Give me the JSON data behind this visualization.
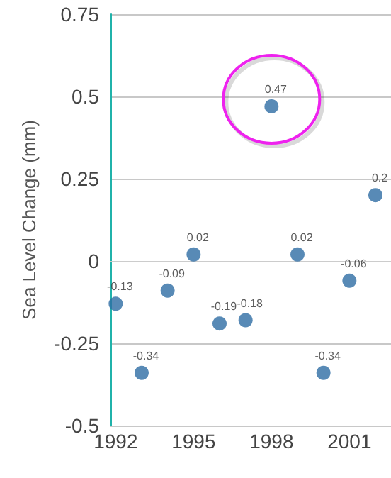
{
  "chart_data": {
    "type": "scatter",
    "ylabel": "Sea Level Change (mm)",
    "x": [
      1992,
      1993,
      1994,
      1995,
      1996,
      1997,
      1998,
      1999,
      2000,
      2001,
      2002
    ],
    "values": [
      -0.13,
      -0.34,
      -0.09,
      0.02,
      -0.19,
      -0.18,
      0.47,
      0.02,
      -0.34,
      -0.06,
      0.2
    ],
    "color": "#2e6da4",
    "xlim": [
      1991.8,
      2002.6
    ],
    "xticks": [
      1992,
      1995,
      1998,
      2001
    ],
    "ylim": [
      -0.5,
      0.75
    ],
    "yticks": [
      -0.5,
      -0.25,
      0,
      0.25,
      0.5,
      0.75
    ],
    "grid": "y",
    "marker": "circle",
    "data_labels": true
  }
}
